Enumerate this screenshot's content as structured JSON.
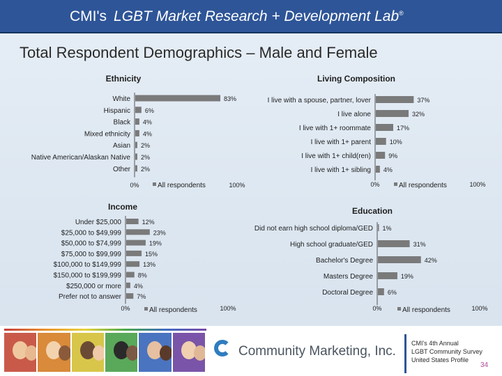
{
  "header": {
    "brand": "CMI's",
    "lab": "LGBT Market Research + Development Lab",
    "mark": "®"
  },
  "slide": {
    "title": "Total Respondent Demographics – Male and Female"
  },
  "colors": {
    "bar": "#7a7a7a",
    "header": "#2e5597",
    "accent": "#2f7cc0"
  },
  "chart_data": [
    {
      "type": "bar",
      "orientation": "horizontal",
      "title": "Ethnicity",
      "categories": [
        "White",
        "Hispanic",
        "Black",
        "Mixed ethnicity",
        "Asian",
        "Native American/Alaskan Native",
        "Other"
      ],
      "values": [
        83,
        6,
        4,
        4,
        2,
        2,
        2
      ],
      "value_format": "{v}%",
      "xlim": [
        0,
        100
      ],
      "xticks": [
        "0%",
        "100%"
      ],
      "legend": "All respondents"
    },
    {
      "type": "bar",
      "orientation": "horizontal",
      "title": "Living Composition",
      "categories": [
        "I live with a spouse, partner, lover",
        "I live alone",
        "I live with 1+ roommate",
        "I live with 1+ parent",
        "I live with 1+ child(ren)",
        "I live with 1+ sibling"
      ],
      "values": [
        37,
        32,
        17,
        10,
        9,
        4
      ],
      "value_format": "{v}%",
      "xlim": [
        0,
        100
      ],
      "xticks": [
        "0%",
        "100%"
      ],
      "legend": "All respondents"
    },
    {
      "type": "bar",
      "orientation": "horizontal",
      "title": "Income",
      "categories": [
        "Under $25,000",
        "$25,000 to $49,999",
        "$50,000 to $74,999",
        "$75,000 to $99,999",
        "$100,000 to $149,999",
        "$150,000 to $199,999",
        "$250,000 or more",
        "Prefer not to answer"
      ],
      "values": [
        12,
        23,
        19,
        15,
        13,
        8,
        4,
        7
      ],
      "value_format": "{v}%",
      "xlim": [
        0,
        100
      ],
      "xticks": [
        "0%",
        "100%"
      ],
      "legend": "All respondents"
    },
    {
      "type": "bar",
      "orientation": "horizontal",
      "title": "Education",
      "categories": [
        "Did not earn high school diploma/GED",
        "High school graduate/GED",
        "Bachelor's Degree",
        "Masters Degree",
        "Doctoral Degree"
      ],
      "values": [
        1,
        31,
        42,
        19,
        6
      ],
      "value_format": "{v}%",
      "xlim": [
        0,
        100
      ],
      "xticks": [
        "0%",
        "100%"
      ],
      "legend": "All respondents"
    }
  ],
  "footer": {
    "company": "Community Marketing, Inc.",
    "survey_lines": [
      "CMI's 4th Annual",
      "LGBT Community Survey",
      "United States Profile"
    ],
    "page_number": "34"
  }
}
